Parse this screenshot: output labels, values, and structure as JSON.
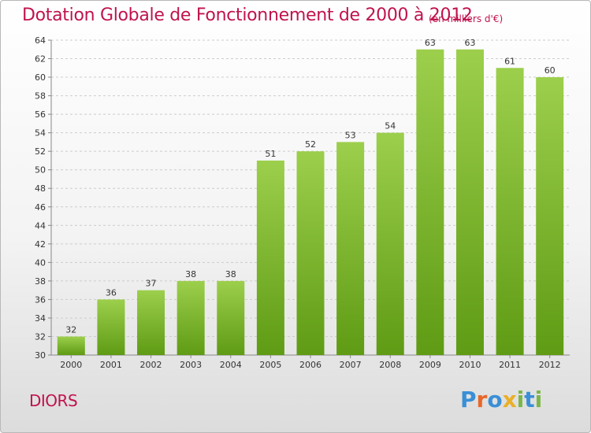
{
  "title": "Dotation Globale de Fonctionnement de 2000 à 2012",
  "subtitle": "(en milliers d'€)",
  "commune": "DIORS",
  "logo": {
    "letters": [
      "P",
      "r",
      "o",
      "x",
      "i",
      "t",
      "i"
    ],
    "colors": [
      "#3a8fd6",
      "#e8672a",
      "#3a8fd6",
      "#e8b02a",
      "#7ab648",
      "#3a8fd6",
      "#7ab648"
    ]
  },
  "colors": {
    "bar_top": "#9ccf4c",
    "bar_bottom": "#5f9b14",
    "title": "#c0134c",
    "grid": "#cccccc"
  },
  "chart_data": {
    "type": "bar",
    "categories": [
      "2000",
      "2001",
      "2002",
      "2003",
      "2004",
      "2005",
      "2006",
      "2007",
      "2008",
      "2009",
      "2010",
      "2011",
      "2012"
    ],
    "values": [
      32,
      36,
      37,
      38,
      38,
      51,
      52,
      53,
      54,
      63,
      63,
      61,
      60
    ],
    "title": "Dotation Globale de Fonctionnement de 2000 à 2012",
    "subtitle": "(en milliers d'€)",
    "xlabel": "",
    "ylabel": "",
    "ylim": [
      30,
      64
    ],
    "yticks": [
      30,
      32,
      34,
      36,
      38,
      40,
      42,
      44,
      46,
      48,
      50,
      52,
      54,
      56,
      58,
      60,
      62,
      64
    ],
    "grid": true,
    "data_labels": true
  }
}
